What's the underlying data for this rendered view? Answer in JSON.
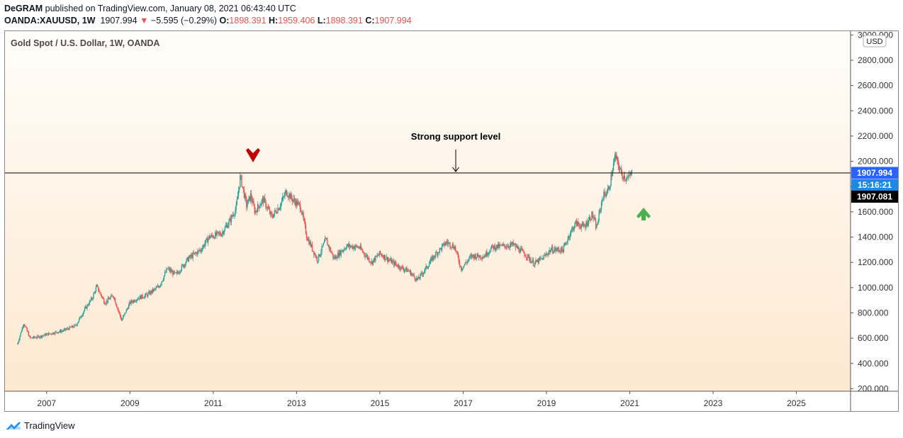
{
  "header": {
    "author": "DeGRAM",
    "published_text": "published on TradingView.com, January 08, 2021 06:43:40 UTC",
    "symbol": "OANDA:XAUUSD, 1W",
    "price": "1907.994",
    "change_arrow": "▼",
    "change": "−5.595 (−0.29%)",
    "o_label": "O:",
    "o_value": "1898.391",
    "h_label": "H:",
    "h_value": "1959.406",
    "l_label": "L:",
    "l_value": "1898.391",
    "c_label": "C:",
    "c_value": "1907.994"
  },
  "footer": {
    "brand": "TradingView"
  },
  "colors": {
    "up": "#26a69a",
    "down": "#ef5350",
    "bg_top": "#fffdf9",
    "bg_bottom": "#fde8d0",
    "price_badge": "#2962ff",
    "countdown_badge": "#1e88e5"
  },
  "chart_data": {
    "type": "candlestick",
    "title": "Gold Spot / U.S. Dollar, 1W, OANDA",
    "currency_button": "USD",
    "x_ticks": [
      "2007",
      "2009",
      "2011",
      "2013",
      "2015",
      "2017",
      "2019",
      "2021",
      "2023",
      "2025"
    ],
    "y_ticks": [
      "3000.000",
      "2800.000",
      "2600.000",
      "2400.000",
      "2200.000",
      "2000.000",
      "1800.000",
      "1600.000",
      "1400.000",
      "1200.000",
      "1000.000",
      "800.000",
      "600.000",
      "400.000",
      "200.000"
    ],
    "ylim": [
      180,
      3030
    ],
    "xlim": [
      2006.0,
      2026.3
    ],
    "support_level": 1907.994,
    "annotation": "Strong support level",
    "price_label": "1907.994",
    "countdown_label": "15:16:21",
    "crosshair_label": "1907.081",
    "price_path": [
      [
        2006.3,
        555
      ],
      [
        2006.45,
        720
      ],
      [
        2006.6,
        600
      ],
      [
        2006.8,
        610
      ],
      [
        2007.0,
        630
      ],
      [
        2007.4,
        660
      ],
      [
        2007.7,
        700
      ],
      [
        2007.9,
        820
      ],
      [
        2008.1,
        920
      ],
      [
        2008.2,
        1010
      ],
      [
        2008.4,
        880
      ],
      [
        2008.6,
        940
      ],
      [
        2008.8,
        740
      ],
      [
        2009.0,
        880
      ],
      [
        2009.2,
        920
      ],
      [
        2009.4,
        940
      ],
      [
        2009.7,
        1010
      ],
      [
        2009.9,
        1150
      ],
      [
        2010.1,
        1100
      ],
      [
        2010.4,
        1230
      ],
      [
        2010.7,
        1300
      ],
      [
        2010.9,
        1400
      ],
      [
        2011.2,
        1430
      ],
      [
        2011.4,
        1530
      ],
      [
        2011.55,
        1630
      ],
      [
        2011.65,
        1880
      ],
      [
        2011.8,
        1650
      ],
      [
        2011.9,
        1730
      ],
      [
        2012.0,
        1600
      ],
      [
        2012.2,
        1700
      ],
      [
        2012.4,
        1560
      ],
      [
        2012.6,
        1650
      ],
      [
        2012.75,
        1760
      ],
      [
        2012.9,
        1700
      ],
      [
        2013.1,
        1640
      ],
      [
        2013.25,
        1400
      ],
      [
        2013.5,
        1220
      ],
      [
        2013.7,
        1380
      ],
      [
        2013.9,
        1230
      ],
      [
        2014.2,
        1330
      ],
      [
        2014.5,
        1320
      ],
      [
        2014.8,
        1200
      ],
      [
        2015.0,
        1270
      ],
      [
        2015.3,
        1200
      ],
      [
        2015.5,
        1160
      ],
      [
        2015.7,
        1130
      ],
      [
        2015.9,
        1060
      ],
      [
        2016.1,
        1150
      ],
      [
        2016.3,
        1250
      ],
      [
        2016.6,
        1360
      ],
      [
        2016.8,
        1320
      ],
      [
        2016.95,
        1150
      ],
      [
        2017.2,
        1250
      ],
      [
        2017.5,
        1250
      ],
      [
        2017.7,
        1320
      ],
      [
        2018.0,
        1330
      ],
      [
        2018.2,
        1340
      ],
      [
        2018.5,
        1260
      ],
      [
        2018.7,
        1190
      ],
      [
        2018.9,
        1230
      ],
      [
        2019.1,
        1300
      ],
      [
        2019.4,
        1300
      ],
      [
        2019.55,
        1420
      ],
      [
        2019.7,
        1510
      ],
      [
        2019.9,
        1480
      ],
      [
        2020.1,
        1580
      ],
      [
        2020.2,
        1470
      ],
      [
        2020.35,
        1720
      ],
      [
        2020.5,
        1780
      ],
      [
        2020.6,
        1960
      ],
      [
        2020.65,
        2040
      ],
      [
        2020.8,
        1900
      ],
      [
        2020.95,
        1860
      ],
      [
        2021.05,
        1908
      ]
    ]
  }
}
